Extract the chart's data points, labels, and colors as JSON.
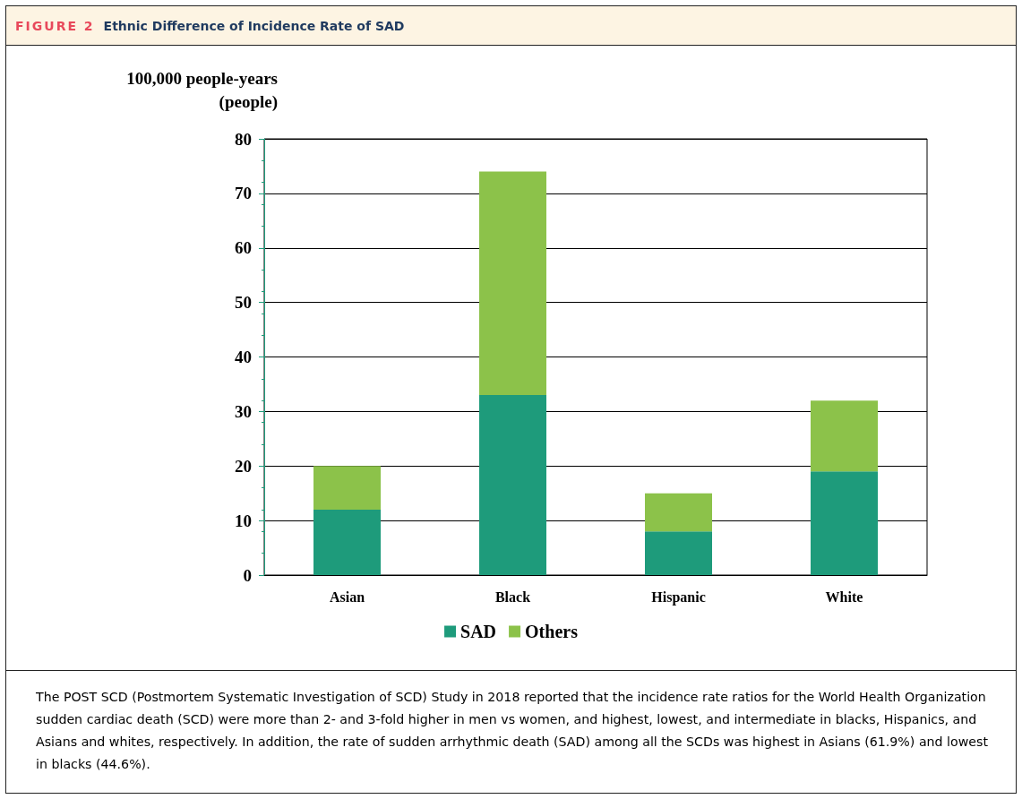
{
  "chart_data": {
    "type": "bar",
    "title": "Ethnic Difference of Incidence Rate of SAD",
    "ylabel": "100,000 people-years (people)",
    "categories": [
      "Asian",
      "Black",
      "Hispanic",
      "White"
    ],
    "series": [
      {
        "name": "SAD",
        "color": "#1e9b7b",
        "values": [
          12,
          33,
          8,
          19
        ]
      },
      {
        "name": "Others",
        "color": "#8cc24a",
        "values": [
          8,
          41,
          7,
          13
        ]
      }
    ],
    "stacked": true,
    "ylim": [
      0,
      80
    ],
    "yticks": [
      0,
      10,
      20,
      30,
      40,
      50,
      60,
      70,
      80
    ],
    "grid": "y",
    "legend": "bottom",
    "annotations": [
      "FIGURE 2",
      "The POST SCD (Postmortem Systematic Investigation of SCD) Study in 2018 reported that the incidence rate ratios for the World Health Organization sudden cardiac death (SCD) were more than 2- and 3-fold higher in men vs women, and highest, lowest, and intermediate in blacks, Hispanics, and Asians and whites, respectively. In addition, the rate of sudden arrhythmic death (SAD) among all the SCDs was highest in Asians (61.9%) and lowest in blacks (44.6%)."
    ]
  }
}
